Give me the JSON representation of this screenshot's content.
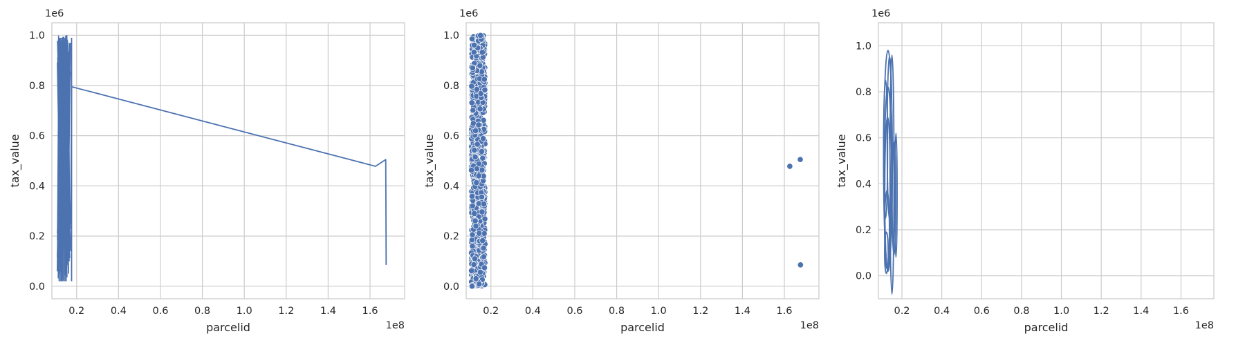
{
  "figure": {
    "colors": {
      "series": "#4C72B0",
      "grid": "#cccccc",
      "axis_text": "#262626",
      "background": "#ffffff"
    },
    "grid": true
  },
  "chart_data": [
    {
      "type": "line",
      "xlabel": "parcelid",
      "ylabel": "tax_value",
      "x_offset_label": "1e8",
      "y_offset_label": "1e6",
      "xlim": [
        0.2,
        1.75
      ],
      "ylim": [
        -0.05,
        1.05
      ],
      "x_ticks": [
        0.2,
        0.4,
        0.6,
        0.8,
        1.0,
        1.2,
        1.4,
        1.6
      ],
      "x_tick_labels": [
        "0.2",
        "0.4",
        "0.6",
        "0.8",
        "1.0",
        "1.2",
        "1.4",
        "1.6"
      ],
      "y_ticks": [
        0.0,
        0.2,
        0.4,
        0.6,
        0.8,
        1.0
      ],
      "y_tick_labels": [
        "0.0",
        "0.2",
        "0.4",
        "0.6",
        "0.8",
        "1.0"
      ],
      "dense_band": {
        "x_min": 0.107,
        "x_max": 0.172,
        "y_min": 0.0,
        "y_max": 1.0
      },
      "series": [
        {
          "x": [
            0.165,
            0.168,
            0.17,
            0.172,
            0.176,
            1.626,
            1.675,
            1.677
          ],
          "y": [
            0.32,
            0.29,
            0.27,
            0.25,
            0.795,
            0.478,
            0.505,
            0.085
          ]
        }
      ]
    },
    {
      "type": "scatter",
      "xlabel": "parcelid",
      "ylabel": "tax_value",
      "x_offset_label": "1e8",
      "y_offset_label": "1e6",
      "xlim": [
        0.2,
        1.75
      ],
      "ylim": [
        -0.05,
        1.05
      ],
      "x_ticks": [
        0.2,
        0.4,
        0.6,
        0.8,
        1.0,
        1.2,
        1.4,
        1.6
      ],
      "x_tick_labels": [
        "0.2",
        "0.4",
        "0.6",
        "0.8",
        "1.0",
        "1.2",
        "1.4",
        "1.6"
      ],
      "y_ticks": [
        0.0,
        0.2,
        0.4,
        0.6,
        0.8,
        1.0
      ],
      "y_tick_labels": [
        "0.0",
        "0.2",
        "0.4",
        "0.6",
        "0.8",
        "1.0"
      ],
      "dense_band": {
        "x_min": 0.107,
        "x_max": 0.172,
        "y_min": 0.0,
        "y_max": 1.0
      },
      "points": [
        {
          "x": 1.626,
          "y": 0.478
        },
        {
          "x": 1.676,
          "y": 0.505
        },
        {
          "x": 1.677,
          "y": 0.085
        },
        {
          "x": 0.11,
          "y": 0.0
        }
      ]
    },
    {
      "type": "kde",
      "xlabel": "parcelid",
      "ylabel": "tax_value",
      "x_offset_label": "1e8",
      "y_offset_label": "1e6",
      "xlim": [
        0.2,
        1.75
      ],
      "ylim": [
        -0.1,
        1.1
      ],
      "x_ticks": [
        0.2,
        0.4,
        0.6,
        0.8,
        1.0,
        1.2,
        1.4,
        1.6
      ],
      "x_tick_labels": [
        "0.2",
        "0.4",
        "0.6",
        "0.8",
        "1.0",
        "1.2",
        "1.4",
        "1.6"
      ],
      "y_ticks": [
        0.0,
        0.2,
        0.4,
        0.6,
        0.8,
        1.0
      ],
      "y_tick_labels": [
        "0.0",
        "0.2",
        "0.4",
        "0.6",
        "0.8",
        "1.0"
      ],
      "contours": [
        {
          "cx": 0.13,
          "cy": 0.5,
          "rx": 0.022,
          "ry": 0.48
        },
        {
          "cx": 0.13,
          "cy": 0.42,
          "rx": 0.018,
          "ry": 0.4
        },
        {
          "cx": 0.128,
          "cy": 0.36,
          "rx": 0.014,
          "ry": 0.33
        },
        {
          "cx": 0.15,
          "cy": 0.44,
          "rx": 0.01,
          "ry": 0.52
        },
        {
          "cx": 0.16,
          "cy": 0.34,
          "rx": 0.009,
          "ry": 0.25
        },
        {
          "cx": 0.17,
          "cy": 0.35,
          "rx": 0.006,
          "ry": 0.27
        },
        {
          "cx": 0.125,
          "cy": 0.2,
          "rx": 0.012,
          "ry": 0.17
        },
        {
          "cx": 0.118,
          "cy": 0.55,
          "rx": 0.01,
          "ry": 0.3
        },
        {
          "cx": 0.138,
          "cy": 0.6,
          "rx": 0.012,
          "ry": 0.35
        },
        {
          "cx": 0.122,
          "cy": 0.1,
          "rx": 0.009,
          "ry": 0.09
        }
      ]
    }
  ]
}
